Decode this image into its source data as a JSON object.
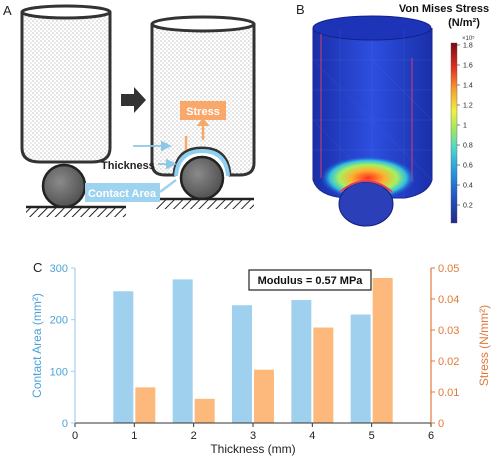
{
  "panels": {
    "a": {
      "letter": "A",
      "labels": {
        "stress": "Stress",
        "thickness": "Thickness",
        "contact_area": "Contact Area"
      },
      "colors": {
        "stress_box": "#f9a86a",
        "contact_box": "#9ed3ef",
        "arrow_blue": "#8cc7e6",
        "membrane": "#8fd0f0"
      }
    },
    "b": {
      "letter": "B",
      "title_line1": "Von Mises Stress",
      "title_line2": "(N/m²)",
      "exponent": "×10⁵",
      "colorbar_ticks": [
        "1.8",
        "1.6",
        "1.4",
        "1.2",
        "1",
        "0.8",
        "0.6",
        "0.4",
        "0.2"
      ]
    },
    "c": {
      "letter": "C"
    }
  },
  "chart_data": {
    "type": "bar",
    "annotation": "Modulus = 0.57 MPa",
    "xlabel": "Thickness (mm)",
    "xlim": [
      0,
      6
    ],
    "xticks": [
      "0",
      "1",
      "2",
      "3",
      "4",
      "5",
      "6"
    ],
    "categories": [
      1,
      2,
      3,
      4,
      5
    ],
    "series": [
      {
        "name": "Contact Area",
        "axis": "left",
        "ylabel": "Contact Area (mm²)",
        "ylim": [
          0,
          300
        ],
        "yticks": [
          "0",
          "100",
          "200",
          "300"
        ],
        "color": "#9fd1ef",
        "values": [
          255,
          278,
          228,
          238,
          210
        ]
      },
      {
        "name": "Stress",
        "axis": "right",
        "ylabel": "Stress (N/mm²)",
        "ylim": [
          0,
          0.05
        ],
        "yticks": [
          "0",
          "0.01",
          "0.02",
          "0.03",
          "0.04",
          "0.05"
        ],
        "color": "#fdb97c",
        "values": [
          0.0115,
          0.0078,
          0.0172,
          0.0308,
          0.0468
        ]
      }
    ]
  }
}
